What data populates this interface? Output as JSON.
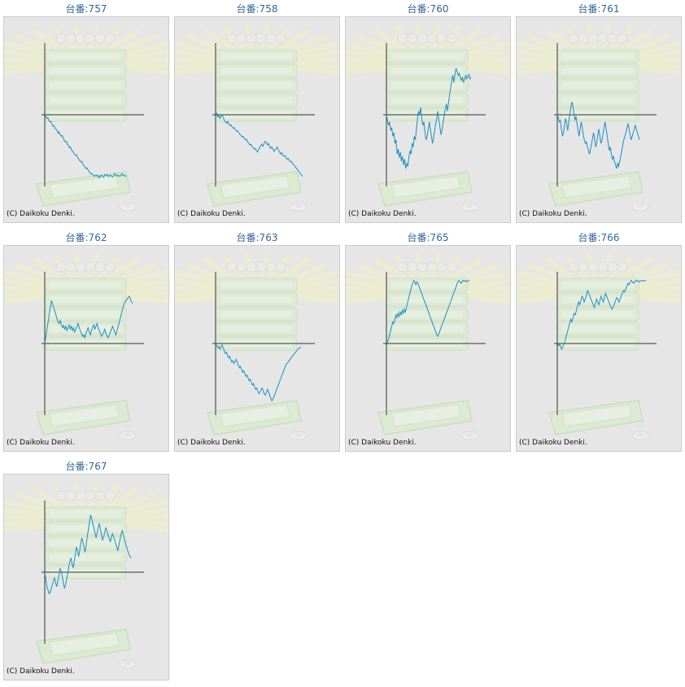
{
  "colors": {
    "line": "#1a8fc6",
    "axis": "#333333",
    "panel_bg": "#e6e6e6",
    "title": "#336699"
  },
  "background_art": "slot-machine-watermark",
  "copyright": "(C) Daikoku Denki.",
  "chart_data": [
    {
      "type": "line",
      "title": "台番:757",
      "x": [
        0,
        1,
        2,
        3,
        4,
        5,
        6,
        7,
        8,
        9,
        10,
        11,
        12,
        13,
        14,
        15,
        16,
        17,
        18,
        19,
        20,
        21,
        22,
        23,
        24,
        25,
        26,
        27,
        28,
        29,
        30,
        31,
        32,
        33,
        34,
        35,
        36,
        37,
        38,
        39,
        40,
        41,
        42,
        43,
        44,
        45,
        46,
        47,
        48,
        49,
        50,
        51,
        52,
        53,
        54,
        55,
        56,
        57,
        58,
        59,
        60,
        61,
        62,
        63,
        64,
        65,
        66,
        67,
        68,
        69,
        70,
        71,
        72,
        73,
        74,
        75,
        76,
        77,
        78,
        79
      ],
      "values": [
        0,
        -2,
        -5,
        -4,
        -8,
        -10,
        -9,
        -13,
        -16,
        -15,
        -19,
        -20,
        -22,
        -26,
        -24,
        -28,
        -30,
        -29,
        -33,
        -36,
        -38,
        -37,
        -41,
        -43,
        -46,
        -45,
        -49,
        -51,
        -53,
        -55,
        -57,
        -56,
        -60,
        -62,
        -64,
        -66,
        -65,
        -69,
        -71,
        -73,
        -75,
        -74,
        -77,
        -79,
        -81,
        -83,
        -82,
        -84,
        -86,
        -85,
        -84,
        -86,
        -85,
        -88,
        -86,
        -84,
        -86,
        -87,
        -85,
        -83,
        -85,
        -84,
        -86,
        -85,
        -84,
        -86,
        -87,
        -85,
        -82,
        -84,
        -86,
        -84,
        -85,
        -86,
        -84,
        -82,
        -85,
        -84,
        -86,
        -85
      ],
      "ylim": [
        -100,
        100
      ]
    },
    {
      "type": "line",
      "title": "台番:758",
      "x": [
        0,
        1,
        2,
        3,
        4,
        5,
        6,
        7,
        8,
        9,
        10,
        11,
        12,
        13,
        14,
        15,
        16,
        17,
        18,
        19,
        20,
        21,
        22,
        23,
        24,
        25,
        26,
        27,
        28,
        29,
        30,
        31,
        32,
        33,
        34,
        35,
        36,
        37,
        38,
        39,
        40,
        41,
        42,
        43,
        44,
        45,
        46,
        47,
        48,
        49,
        50,
        51,
        52,
        53,
        54,
        55,
        56,
        57,
        58,
        59,
        60,
        61,
        62,
        63,
        64,
        65,
        66,
        67,
        68,
        69,
        70,
        71,
        72,
        73,
        74,
        75,
        76,
        77,
        78,
        79
      ],
      "values": [
        0,
        2,
        -3,
        -1,
        -5,
        -2,
        0,
        -4,
        -8,
        -10,
        -12,
        -9,
        -13,
        -15,
        -14,
        -17,
        -19,
        -18,
        -21,
        -23,
        -22,
        -25,
        -27,
        -29,
        -31,
        -30,
        -33,
        -35,
        -34,
        -38,
        -40,
        -42,
        -41,
        -44,
        -46,
        -48,
        -47,
        -50,
        -52,
        -49,
        -46,
        -43,
        -41,
        -44,
        -40,
        -37,
        -39,
        -42,
        -40,
        -44,
        -47,
        -45,
        -48,
        -51,
        -49,
        -47,
        -45,
        -49,
        -52,
        -55,
        -53,
        -56,
        -58,
        -57,
        -60,
        -62,
        -61,
        -64,
        -66,
        -65,
        -68,
        -70,
        -72,
        -74,
        -76,
        -78,
        -80,
        -82,
        -84,
        -86
      ],
      "ylim": [
        -100,
        100
      ]
    },
    {
      "type": "line",
      "title": "台番:760",
      "x": [
        0,
        1,
        2,
        3,
        4,
        5,
        6,
        7,
        8,
        9,
        10,
        11,
        12,
        13,
        14,
        15,
        16,
        17,
        18,
        19,
        20,
        21,
        22,
        23,
        24,
        25,
        26,
        27,
        28,
        29,
        30,
        31,
        32,
        33,
        34,
        35,
        36,
        37,
        38,
        39,
        40,
        41,
        42,
        43,
        44,
        45,
        46,
        47,
        48,
        49,
        50,
        51,
        52,
        53,
        54,
        55,
        56,
        57,
        58,
        59,
        60,
        61,
        62,
        63,
        64,
        65,
        66,
        67,
        68,
        69,
        70,
        71,
        72,
        73,
        74,
        75,
        76,
        77,
        78,
        79
      ],
      "values": [
        0,
        -8,
        -15,
        -10,
        -22,
        -18,
        -30,
        -25,
        -40,
        -35,
        -55,
        -48,
        -60,
        -52,
        -65,
        -58,
        -70,
        -62,
        -75,
        -68,
        -72,
        -60,
        -50,
        -55,
        -40,
        -45,
        -30,
        -35,
        -20,
        -5,
        5,
        0,
        10,
        -5,
        -15,
        -10,
        -25,
        -35,
        -30,
        -20,
        -10,
        -20,
        -30,
        -40,
        -32,
        -22,
        -12,
        -5,
        5,
        -8,
        -18,
        -28,
        -20,
        -10,
        0,
        8,
        15,
        5,
        18,
        28,
        38,
        48,
        55,
        45,
        58,
        65,
        60,
        55,
        58,
        52,
        48,
        52,
        45,
        50,
        55,
        50,
        54,
        56,
        50,
        52
      ],
      "ylim": [
        -100,
        100
      ]
    },
    {
      "type": "line",
      "title": "台番:761",
      "x": [
        0,
        1,
        2,
        3,
        4,
        5,
        6,
        7,
        8,
        9,
        10,
        11,
        12,
        13,
        14,
        15,
        16,
        17,
        18,
        19,
        20,
        21,
        22,
        23,
        24,
        25,
        26,
        27,
        28,
        29,
        30,
        31,
        32,
        33,
        34,
        35,
        36,
        37,
        38,
        39,
        40,
        41,
        42,
        43,
        44,
        45,
        46,
        47,
        48,
        49,
        50,
        51,
        52,
        53,
        54,
        55,
        56,
        57,
        58,
        59,
        60,
        61,
        62,
        63,
        64,
        65,
        66,
        67,
        68,
        69,
        70,
        71,
        72,
        73,
        74,
        75,
        76,
        77,
        78,
        79
      ],
      "values": [
        0,
        -5,
        -10,
        -8,
        -20,
        -30,
        -25,
        -15,
        -5,
        -12,
        -22,
        -10,
        0,
        10,
        18,
        12,
        2,
        -8,
        -2,
        -12,
        -22,
        -30,
        -20,
        -10,
        -18,
        -28,
        -35,
        -40,
        -38,
        -45,
        -50,
        -55,
        -48,
        -40,
        -32,
        -25,
        -35,
        -45,
        -38,
        -28,
        -20,
        -30,
        -40,
        -35,
        -25,
        -18,
        -10,
        -20,
        -30,
        -40,
        -50,
        -45,
        -55,
        -62,
        -58,
        -65,
        -70,
        -75,
        -68,
        -72,
        -65,
        -58,
        -50,
        -42,
        -35,
        -30,
        -25,
        -18,
        -12,
        -20,
        -28,
        -35,
        -30,
        -25,
        -20,
        -15,
        -20,
        -25,
        -30,
        -35
      ],
      "ylim": [
        -100,
        100
      ]
    },
    {
      "type": "line",
      "title": "台番:762",
      "x": [
        0,
        1,
        2,
        3,
        4,
        5,
        6,
        7,
        8,
        9,
        10,
        11,
        12,
        13,
        14,
        15,
        16,
        17,
        18,
        19,
        20,
        21,
        22,
        23,
        24,
        25,
        26,
        27,
        28,
        29,
        30,
        31,
        32,
        33,
        34,
        35,
        36,
        37,
        38,
        39,
        40,
        41,
        42,
        43,
        44,
        45,
        46,
        47,
        48,
        49,
        50,
        51,
        52,
        53,
        54,
        55,
        56,
        57,
        58,
        59,
        60,
        61,
        62,
        63,
        64,
        65,
        66,
        67,
        68,
        69,
        70,
        71,
        72,
        73,
        74,
        75,
        76,
        77,
        78,
        79
      ],
      "values": [
        0,
        10,
        20,
        30,
        40,
        50,
        60,
        55,
        50,
        45,
        40,
        35,
        30,
        28,
        32,
        26,
        22,
        25,
        20,
        24,
        18,
        22,
        26,
        20,
        24,
        18,
        22,
        16,
        20,
        24,
        28,
        22,
        18,
        14,
        10,
        12,
        8,
        14,
        18,
        22,
        16,
        12,
        18,
        22,
        26,
        20,
        24,
        28,
        22,
        18,
        14,
        10,
        12,
        16,
        20,
        14,
        10,
        8,
        12,
        16,
        20,
        24,
        20,
        16,
        12,
        18,
        24,
        30,
        36,
        42,
        48,
        54,
        58,
        60,
        62,
        64,
        66,
        62,
        58,
        56
      ],
      "ylim": [
        -100,
        100
      ]
    },
    {
      "type": "line",
      "title": "台番:763",
      "x": [
        0,
        1,
        2,
        3,
        4,
        5,
        6,
        7,
        8,
        9,
        10,
        11,
        12,
        13,
        14,
        15,
        16,
        17,
        18,
        19,
        20,
        21,
        22,
        23,
        24,
        25,
        26,
        27,
        28,
        29,
        30,
        31,
        32,
        33,
        34,
        35,
        36,
        37,
        38,
        39,
        40,
        41,
        42,
        43,
        44,
        45,
        46,
        47,
        48,
        49,
        50,
        51,
        52,
        53,
        54,
        55,
        56,
        57,
        58,
        59,
        60,
        61,
        62,
        63,
        64,
        65,
        66,
        67,
        68,
        69,
        70,
        71,
        72,
        73,
        74,
        75,
        76,
        77,
        78,
        79
      ],
      "values": [
        0,
        -3,
        -6,
        -4,
        -8,
        -5,
        -2,
        -6,
        -10,
        -14,
        -12,
        -16,
        -20,
        -18,
        -22,
        -26,
        -24,
        -28,
        -25,
        -22,
        -26,
        -30,
        -34,
        -32,
        -36,
        -40,
        -38,
        -42,
        -46,
        -44,
        -48,
        -52,
        -50,
        -54,
        -58,
        -56,
        -60,
        -64,
        -62,
        -66,
        -70,
        -68,
        -65,
        -62,
        -66,
        -70,
        -72,
        -68,
        -64,
        -68,
        -72,
        -76,
        -80,
        -78,
        -74,
        -70,
        -66,
        -62,
        -58,
        -54,
        -50,
        -46,
        -42,
        -38,
        -34,
        -30,
        -28,
        -26,
        -24,
        -22,
        -20,
        -18,
        -16,
        -14,
        -12,
        -10,
        -8,
        -7,
        -6,
        -5
      ],
      "ylim": [
        -100,
        100
      ]
    },
    {
      "type": "line",
      "title": "台番:765",
      "x": [
        0,
        1,
        2,
        3,
        4,
        5,
        6,
        7,
        8,
        9,
        10,
        11,
        12,
        13,
        14,
        15,
        16,
        17,
        18,
        19,
        20,
        21,
        22,
        23,
        24,
        25,
        26,
        27,
        28,
        29,
        30,
        31,
        32,
        33,
        34,
        35,
        36,
        37,
        38,
        39,
        40,
        41,
        42,
        43,
        44,
        45,
        46,
        47,
        48,
        49,
        50,
        51,
        52,
        53,
        54,
        55,
        56,
        57,
        58,
        59,
        60,
        61,
        62,
        63,
        64,
        65,
        66,
        67,
        68,
        69,
        70,
        71,
        72,
        73,
        74,
        75,
        76,
        77,
        78,
        79
      ],
      "values": [
        0,
        2,
        6,
        12,
        18,
        24,
        30,
        28,
        34,
        40,
        36,
        42,
        38,
        44,
        40,
        46,
        42,
        48,
        44,
        50,
        56,
        62,
        68,
        74,
        80,
        84,
        88,
        86,
        82,
        86,
        84,
        80,
        76,
        72,
        68,
        64,
        60,
        56,
        52,
        48,
        44,
        40,
        36,
        32,
        28,
        24,
        20,
        16,
        12,
        10,
        14,
        18,
        22,
        26,
        30,
        34,
        38,
        42,
        46,
        50,
        54,
        58,
        62,
        66,
        70,
        74,
        78,
        82,
        86,
        88,
        86,
        84,
        86,
        88,
        87,
        88,
        86,
        87,
        88,
        88
      ],
      "ylim": [
        -100,
        100
      ]
    },
    {
      "type": "line",
      "title": "台番:766",
      "x": [
        0,
        1,
        2,
        3,
        4,
        5,
        6,
        7,
        8,
        9,
        10,
        11,
        12,
        13,
        14,
        15,
        16,
        17,
        18,
        19,
        20,
        21,
        22,
        23,
        24,
        25,
        26,
        27,
        28,
        29,
        30,
        31,
        32,
        33,
        34,
        35,
        36,
        37,
        38,
        39,
        40,
        41,
        42,
        43,
        44,
        45,
        46,
        47,
        48,
        49,
        50,
        51,
        52,
        53,
        54,
        55,
        56,
        57,
        58,
        59,
        60,
        61,
        62,
        63,
        64,
        65,
        66,
        67,
        68,
        69,
        70,
        71,
        72,
        73,
        74,
        75,
        76,
        77,
        78,
        79
      ],
      "values": [
        0,
        -3,
        -1,
        -5,
        -8,
        -4,
        0,
        4,
        10,
        16,
        22,
        28,
        34,
        30,
        36,
        42,
        40,
        46,
        52,
        58,
        54,
        60,
        66,
        64,
        58,
        62,
        68,
        74,
        70,
        66,
        62,
        58,
        54,
        50,
        56,
        62,
        58,
        54,
        60,
        66,
        62,
        58,
        64,
        70,
        66,
        62,
        58,
        54,
        50,
        48,
        52,
        56,
        60,
        64,
        62,
        58,
        62,
        66,
        70,
        74,
        72,
        76,
        80,
        84,
        82,
        86,
        88,
        86,
        84,
        86,
        88,
        87,
        88,
        86,
        87,
        88,
        88,
        87,
        88,
        88
      ],
      "ylim": [
        -100,
        100
      ]
    },
    {
      "type": "line",
      "title": "台番:767",
      "x": [
        0,
        1,
        2,
        3,
        4,
        5,
        6,
        7,
        8,
        9,
        10,
        11,
        12,
        13,
        14,
        15,
        16,
        17,
        18,
        19,
        20,
        21,
        22,
        23,
        24,
        25,
        26,
        27,
        28,
        29,
        30,
        31,
        32,
        33,
        34,
        35,
        36,
        37,
        38,
        39,
        40,
        41,
        42,
        43,
        44,
        45,
        46,
        47,
        48,
        49,
        50,
        51,
        52,
        53,
        54,
        55,
        56,
        57,
        58,
        59,
        60,
        61,
        62,
        63,
        64,
        65,
        66,
        67,
        68,
        69,
        70,
        71,
        72,
        73,
        74,
        75,
        76,
        77,
        78,
        79
      ],
      "values": [
        0,
        -10,
        -20,
        -25,
        -30,
        -28,
        -22,
        -18,
        -12,
        -8,
        -15,
        -20,
        -12,
        -5,
        5,
        2,
        -5,
        -15,
        -22,
        -18,
        -10,
        -2,
        8,
        15,
        20,
        12,
        6,
        15,
        25,
        35,
        30,
        22,
        30,
        40,
        48,
        42,
        35,
        28,
        38,
        50,
        60,
        70,
        80,
        75,
        68,
        62,
        55,
        48,
        55,
        62,
        68,
        60,
        52,
        45,
        50,
        56,
        62,
        58,
        52,
        48,
        42,
        48,
        54,
        50,
        45,
        40,
        35,
        30,
        38,
        46,
        54,
        58,
        52,
        46,
        40,
        35,
        30,
        26,
        22,
        20
      ],
      "ylim": [
        -100,
        100
      ]
    }
  ]
}
